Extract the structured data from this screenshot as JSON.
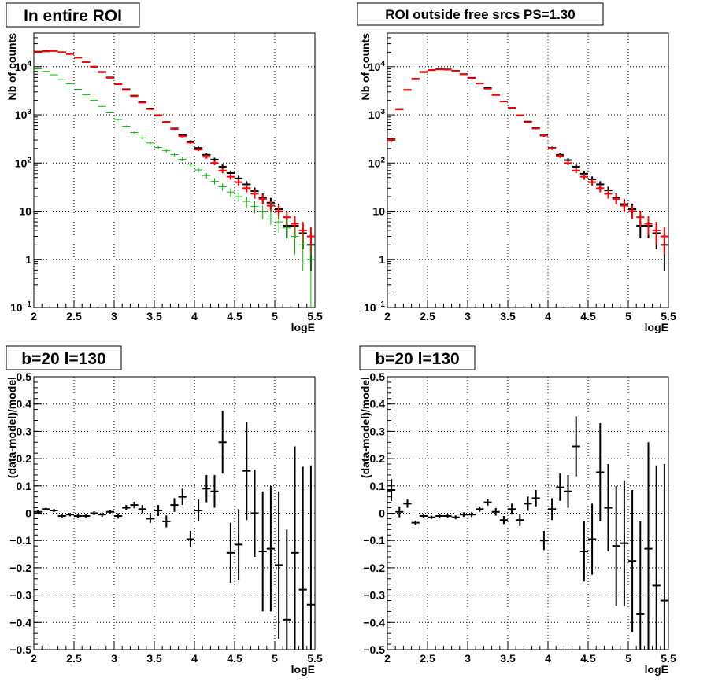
{
  "chart_data": [
    {
      "type": "scatter",
      "title": "In entire ROI",
      "xlabel": "logE",
      "ylabel": "Nb of counts",
      "log_y": true,
      "grid": true,
      "xlim": [
        2,
        5.5
      ],
      "ylim": [
        0.1,
        50000
      ],
      "x_ticks": [
        "2",
        "2.5",
        "3",
        "3.5",
        "4",
        "4.5",
        "5",
        "5.5"
      ],
      "y_ticks": [
        {
          "v": 0.1,
          "b": "10",
          "e": "−1"
        },
        {
          "v": 1,
          "b": "1",
          "e": ""
        },
        {
          "v": 10,
          "b": "10",
          "e": ""
        },
        {
          "v": 100,
          "b": "10",
          "e": "2"
        },
        {
          "v": 1000,
          "b": "10",
          "e": "3"
        },
        {
          "v": 10000,
          "b": "10",
          "e": "4"
        }
      ],
      "series": [
        {
          "role": "data",
          "color": "#000000",
          "errors": true,
          "x": [
            2.05,
            2.15,
            2.25,
            2.35,
            2.45,
            2.55,
            2.65,
            2.75,
            2.85,
            2.95,
            3.05,
            3.15,
            3.25,
            3.35,
            3.45,
            3.55,
            3.65,
            3.75,
            3.85,
            3.95,
            4.05,
            4.15,
            4.25,
            4.35,
            4.45,
            4.55,
            4.65,
            4.75,
            4.85,
            4.95,
            5.05,
            5.15,
            5.25,
            5.35,
            5.45
          ],
          "y": [
            20500,
            21000,
            21500,
            20000,
            18500,
            15500,
            12500,
            10000,
            7800,
            6000,
            4400,
            3400,
            2500,
            1850,
            1350,
            980,
            710,
            520,
            380,
            280,
            205,
            148,
            118,
            84,
            62,
            48,
            36,
            26,
            19,
            15,
            11,
            5,
            5,
            3.5,
            2
          ]
        },
        {
          "role": "model",
          "color": "#ff0000",
          "errors": true,
          "x": [
            2.05,
            2.15,
            2.25,
            2.35,
            2.45,
            2.55,
            2.65,
            2.75,
            2.85,
            2.95,
            3.05,
            3.15,
            3.25,
            3.35,
            3.45,
            3.55,
            3.65,
            3.75,
            3.85,
            3.95,
            4.05,
            4.15,
            4.25,
            4.35,
            4.45,
            4.55,
            4.65,
            4.75,
            4.85,
            4.95,
            5.05,
            5.15,
            5.25,
            5.35,
            5.45
          ],
          "y": [
            20000,
            20800,
            21200,
            19800,
            18300,
            15400,
            12500,
            10000,
            7700,
            5900,
            4350,
            3300,
            2450,
            1800,
            1320,
            960,
            700,
            510,
            360,
            265,
            190,
            135,
            100,
            70,
            52,
            40,
            30,
            23,
            18,
            13,
            10,
            7.5,
            5.5,
            4,
            3
          ]
        },
        {
          "role": "component",
          "color": "#00c000",
          "errors": true,
          "x": [
            2.05,
            2.15,
            2.25,
            2.35,
            2.45,
            2.55,
            2.65,
            2.75,
            2.85,
            2.95,
            3.05,
            3.15,
            3.25,
            3.35,
            3.45,
            3.55,
            3.65,
            3.75,
            3.85,
            3.95,
            4.05,
            4.15,
            4.25,
            4.35,
            4.45,
            4.55,
            4.65,
            4.75,
            4.85,
            4.95,
            5.05,
            5.15,
            5.25,
            5.35,
            5.45
          ],
          "y": [
            9000,
            8000,
            6800,
            5500,
            4400,
            3400,
            2600,
            2000,
            1500,
            1100,
            800,
            580,
            430,
            330,
            260,
            210,
            180,
            150,
            120,
            95,
            72,
            55,
            42,
            32,
            25,
            20,
            16,
            12.5,
            10,
            8,
            6,
            4.5,
            3,
            2,
            1
          ]
        }
      ]
    },
    {
      "type": "scatter",
      "title": "ROI outside free srcs PS=1.30",
      "xlabel": "logE",
      "ylabel": "Nb of counts",
      "log_y": true,
      "grid": true,
      "xlim": [
        2,
        5.5
      ],
      "ylim": [
        0.1,
        50000
      ],
      "x_ticks": [
        "2",
        "2.5",
        "3",
        "3.5",
        "4",
        "4.5",
        "5",
        "5.5"
      ],
      "y_ticks": [
        {
          "v": 0.1,
          "b": "10",
          "e": "−1"
        },
        {
          "v": 1,
          "b": "1",
          "e": ""
        },
        {
          "v": 10,
          "b": "10",
          "e": ""
        },
        {
          "v": 100,
          "b": "10",
          "e": "2"
        },
        {
          "v": 1000,
          "b": "10",
          "e": "3"
        },
        {
          "v": 10000,
          "b": "10",
          "e": "4"
        }
      ],
      "series": [
        {
          "role": "data",
          "color": "#000000",
          "errors": true,
          "x": [
            2.05,
            2.15,
            2.25,
            2.35,
            2.45,
            2.55,
            2.65,
            2.75,
            2.85,
            2.95,
            3.05,
            3.15,
            3.25,
            3.35,
            3.45,
            3.55,
            3.65,
            3.75,
            3.85,
            3.95,
            4.05,
            4.15,
            4.25,
            4.35,
            4.45,
            4.55,
            4.65,
            4.75,
            4.85,
            4.95,
            5.05,
            5.15,
            5.25,
            5.35,
            5.45
          ],
          "y": [
            310,
            1320,
            3300,
            5600,
            7800,
            8500,
            8900,
            8800,
            8200,
            7000,
            5900,
            4500,
            3600,
            2600,
            1900,
            1400,
            980,
            720,
            540,
            380,
            205,
            148,
            115,
            84,
            60,
            46,
            36,
            27,
            19,
            14,
            11,
            5,
            5,
            3.5,
            2
          ]
        },
        {
          "role": "model",
          "color": "#ff0000",
          "errors": true,
          "x": [
            2.05,
            2.15,
            2.25,
            2.35,
            2.45,
            2.55,
            2.65,
            2.75,
            2.85,
            2.95,
            3.05,
            3.15,
            3.25,
            3.35,
            3.45,
            3.55,
            3.65,
            3.75,
            3.85,
            3.95,
            4.05,
            4.15,
            4.25,
            4.35,
            4.45,
            4.55,
            4.65,
            4.75,
            4.85,
            4.95,
            5.05,
            5.15,
            5.25,
            5.35,
            5.45
          ],
          "y": [
            300,
            1300,
            3300,
            5500,
            7700,
            8500,
            8800,
            8700,
            8100,
            7000,
            5800,
            4500,
            3500,
            2600,
            1900,
            1400,
            980,
            700,
            520,
            370,
            200,
            140,
            100,
            70,
            52,
            40,
            30,
            23,
            18,
            13,
            10,
            7.5,
            5.5,
            4,
            3
          ]
        }
      ]
    },
    {
      "type": "scatter",
      "title": "b=20 l=130",
      "xlabel": "logE",
      "ylabel": "(data-model)/model",
      "log_y": false,
      "grid": true,
      "xlim": [
        2,
        5.5
      ],
      "ylim": [
        -0.5,
        0.5
      ],
      "x_ticks": [
        "2",
        "2.5",
        "3",
        "3.5",
        "4",
        "4.5",
        "5",
        "5.5"
      ],
      "y_ticks": [
        {
          "v": -0.5,
          "b": "−0.5",
          "e": ""
        },
        {
          "v": -0.4,
          "b": "−0.4",
          "e": ""
        },
        {
          "v": -0.3,
          "b": "−0.3",
          "e": ""
        },
        {
          "v": -0.2,
          "b": "−0.2",
          "e": ""
        },
        {
          "v": -0.1,
          "b": "−0.1",
          "e": ""
        },
        {
          "v": 0,
          "b": "0",
          "e": ""
        },
        {
          "v": 0.1,
          "b": "0.1",
          "e": ""
        },
        {
          "v": 0.2,
          "b": "0.2",
          "e": ""
        },
        {
          "v": 0.3,
          "b": "0.3",
          "e": ""
        },
        {
          "v": 0.4,
          "b": "0.4",
          "e": ""
        },
        {
          "v": 0.5,
          "b": "0.5",
          "e": ""
        }
      ],
      "series": [
        {
          "role": "residual",
          "color": "#000000",
          "errors": true,
          "x": [
            2.05,
            2.15,
            2.25,
            2.35,
            2.45,
            2.55,
            2.65,
            2.75,
            2.85,
            2.95,
            3.05,
            3.15,
            3.25,
            3.35,
            3.45,
            3.55,
            3.65,
            3.75,
            3.85,
            3.95,
            4.05,
            4.15,
            4.25,
            4.35,
            4.45,
            4.55,
            4.65,
            4.75,
            4.85,
            4.95,
            5.05,
            5.15,
            5.25,
            5.35,
            5.45
          ],
          "y": [
            0.005,
            0.015,
            0.01,
            -0.01,
            -0.005,
            -0.01,
            -0.01,
            0.0,
            -0.005,
            0.005,
            -0.01,
            0.02,
            0.03,
            0.015,
            -0.02,
            0.01,
            -0.03,
            0.03,
            0.06,
            -0.095,
            0.01,
            0.09,
            0.08,
            0.26,
            -0.145,
            -0.115,
            0.155,
            0.0,
            -0.14,
            -0.13,
            -0.19,
            -0.39,
            -0.145,
            -0.28,
            -0.335
          ],
          "err": [
            0.005,
            0.005,
            0.006,
            0.006,
            0.006,
            0.006,
            0.006,
            0.007,
            0.008,
            0.008,
            0.01,
            0.01,
            0.012,
            0.015,
            0.015,
            0.02,
            0.022,
            0.025,
            0.03,
            0.03,
            0.04,
            0.05,
            0.06,
            0.115,
            0.11,
            0.13,
            0.18,
            0.16,
            0.22,
            0.23,
            0.27,
            0.33,
            0.39,
            0.45,
            0.51
          ]
        }
      ]
    },
    {
      "type": "scatter",
      "title": "b=20 l=130",
      "xlabel": "logE",
      "ylabel": "(data-model)/model",
      "log_y": false,
      "grid": true,
      "xlim": [
        2,
        5.5
      ],
      "ylim": [
        -0.5,
        0.5
      ],
      "x_ticks": [
        "2",
        "2.5",
        "3",
        "3.5",
        "4",
        "4.5",
        "5",
        "5.5"
      ],
      "y_ticks": [
        {
          "v": -0.5,
          "b": "−0.5",
          "e": ""
        },
        {
          "v": -0.4,
          "b": "−0.4",
          "e": ""
        },
        {
          "v": -0.3,
          "b": "−0.3",
          "e": ""
        },
        {
          "v": -0.2,
          "b": "−0.2",
          "e": ""
        },
        {
          "v": -0.1,
          "b": "−0.1",
          "e": ""
        },
        {
          "v": 0,
          "b": "0",
          "e": ""
        },
        {
          "v": 0.1,
          "b": "0.1",
          "e": ""
        },
        {
          "v": 0.2,
          "b": "0.2",
          "e": ""
        },
        {
          "v": 0.3,
          "b": "0.3",
          "e": ""
        },
        {
          "v": 0.4,
          "b": "0.4",
          "e": ""
        },
        {
          "v": 0.5,
          "b": "0.5",
          "e": ""
        }
      ],
      "series": [
        {
          "role": "residual",
          "color": "#000000",
          "errors": true,
          "x": [
            2.05,
            2.15,
            2.25,
            2.35,
            2.45,
            2.55,
            2.65,
            2.75,
            2.85,
            2.95,
            3.05,
            3.15,
            3.25,
            3.35,
            3.45,
            3.55,
            3.65,
            3.75,
            3.85,
            3.95,
            4.05,
            4.15,
            4.25,
            4.35,
            4.45,
            4.55,
            4.65,
            4.75,
            4.85,
            4.95,
            5.05,
            5.15,
            5.25,
            5.35,
            5.45
          ],
          "y": [
            0.085,
            0.005,
            0.035,
            -0.035,
            -0.01,
            -0.015,
            -0.01,
            -0.01,
            -0.015,
            -0.005,
            -0.005,
            0.015,
            0.04,
            0.005,
            -0.025,
            0.015,
            -0.025,
            0.035,
            0.055,
            -0.1,
            0.015,
            0.095,
            0.08,
            0.245,
            -0.14,
            -0.095,
            0.15,
            0.02,
            -0.12,
            -0.11,
            -0.175,
            -0.37,
            -0.13,
            -0.265,
            -0.32
          ],
          "err": [
            0.04,
            0.02,
            0.015,
            0.008,
            0.006,
            0.006,
            0.006,
            0.007,
            0.007,
            0.008,
            0.009,
            0.01,
            0.012,
            0.014,
            0.015,
            0.02,
            0.022,
            0.026,
            0.03,
            0.035,
            0.04,
            0.05,
            0.06,
            0.11,
            0.11,
            0.13,
            0.18,
            0.16,
            0.22,
            0.23,
            0.26,
            0.34,
            0.39,
            0.44,
            0.5
          ]
        }
      ]
    }
  ]
}
